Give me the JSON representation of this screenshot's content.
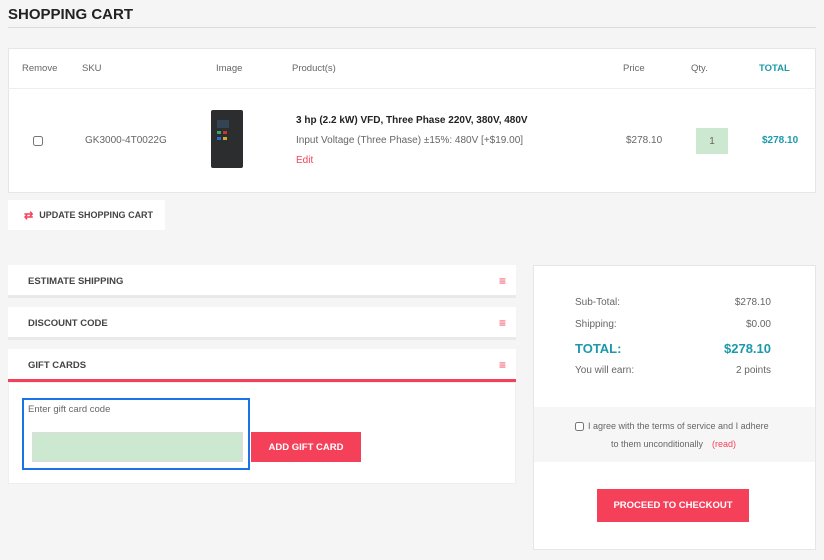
{
  "page": {
    "title": "SHOPPING CART"
  },
  "table": {
    "headers": [
      "Remove",
      "SKU",
      "Image",
      "Product(s)",
      "Price",
      "Qty.",
      "TOTAL"
    ],
    "rows": [
      {
        "sku": "GK3000-4T0022G",
        "name": "3 hp (2.2 kW) VFD, Three Phase 220V, 380V, 480V",
        "attributes": "Input Voltage (Three Phase) ±15%: 480V [+$19.00]",
        "edit": "Edit",
        "price": "$278.10",
        "qty": "1",
        "total": "$278.10"
      }
    ]
  },
  "update_button": "UPDATE SHOPPING CART",
  "panels": {
    "estimate_shipping": "ESTIMATE SHIPPING",
    "discount_code": "DISCOUNT CODE",
    "gift_cards": "GIFT CARDS",
    "gift_label": "Enter gift card code",
    "gift_value": "",
    "add_gift_card": "ADD GIFT CARD"
  },
  "summary": {
    "subtotal_label": "Sub-Total:",
    "subtotal": "$278.10",
    "shipping_label": "Shipping:",
    "shipping": "$0.00",
    "total_label": "TOTAL:",
    "total": "$278.10",
    "earn_label": "You will earn:",
    "earn": "2 points",
    "terms_line1": "I agree with the terms of service and I adhere",
    "terms_line2": "to them unconditionally",
    "terms_read": "(read)",
    "checkout": "PROCEED TO CHECKOUT"
  },
  "colors": {
    "accent": "#f5405a",
    "teal": "#1b9aaa",
    "qty_bg": "#cce8d0",
    "focus": "#1a73e8"
  }
}
